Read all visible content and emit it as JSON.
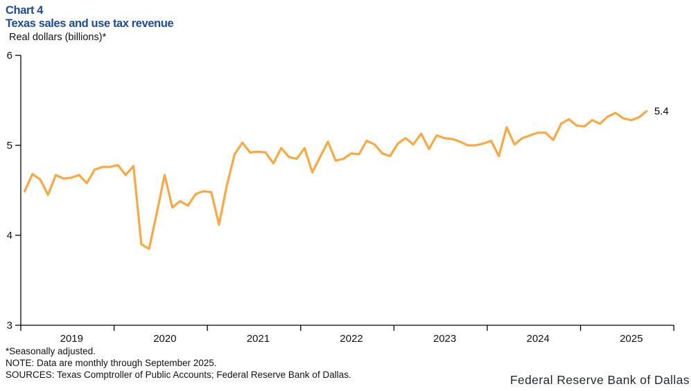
{
  "header": {
    "chart_label": "Chart 4",
    "title": "Texas sales and use tax revenue",
    "y_axis_title": "Real dollars (billions)*"
  },
  "chart_data": {
    "type": "line",
    "title": "Texas sales and use tax revenue",
    "xlabel": "",
    "ylabel": "Real dollars (billions)*",
    "ylim": [
      3,
      6
    ],
    "y_ticks": [
      3,
      4,
      5,
      6
    ],
    "x_tick_years": [
      "2019",
      "2020",
      "2021",
      "2022",
      "2023",
      "2024",
      "2025"
    ],
    "frequency": "monthly",
    "x_start": "2019-01",
    "x_end": "2025-09",
    "grid": "off",
    "legend_position": "none",
    "end_label": "5.4",
    "series": [
      {
        "name": "Texas sales and use tax revenue (real, seasonally adjusted)",
        "color": "#F8A844",
        "values": [
          4.49,
          4.68,
          4.62,
          4.45,
          4.67,
          4.63,
          4.64,
          4.67,
          4.58,
          4.73,
          4.76,
          4.76,
          4.78,
          4.67,
          4.77,
          3.9,
          3.85,
          4.25,
          4.67,
          4.31,
          4.38,
          4.33,
          4.46,
          4.49,
          4.48,
          4.12,
          4.55,
          4.9,
          5.03,
          4.92,
          4.93,
          4.92,
          4.8,
          4.97,
          4.87,
          4.85,
          4.97,
          4.7,
          4.87,
          5.04,
          4.83,
          4.85,
          4.91,
          4.9,
          5.05,
          5.01,
          4.91,
          4.88,
          5.02,
          5.08,
          5.01,
          5.13,
          4.96,
          5.11,
          5.08,
          5.07,
          5.04,
          5.0,
          5.0,
          5.02,
          5.05,
          4.88,
          5.2,
          5.01,
          5.08,
          5.11,
          5.14,
          5.14,
          5.06,
          5.24,
          5.29,
          5.22,
          5.21,
          5.28,
          5.24,
          5.32,
          5.36,
          5.3,
          5.28,
          5.31,
          5.38
        ]
      }
    ]
  },
  "footnotes": {
    "seasonal": "*Seasonally adjusted.",
    "note": "NOTE: Data are monthly through September 2025.",
    "sources": "SOURCES: Texas Comptroller of Public Accounts; Federal Reserve Bank of Dallas."
  },
  "branding": {
    "wordmark": "Federal Reserve Bank of Dallas"
  }
}
